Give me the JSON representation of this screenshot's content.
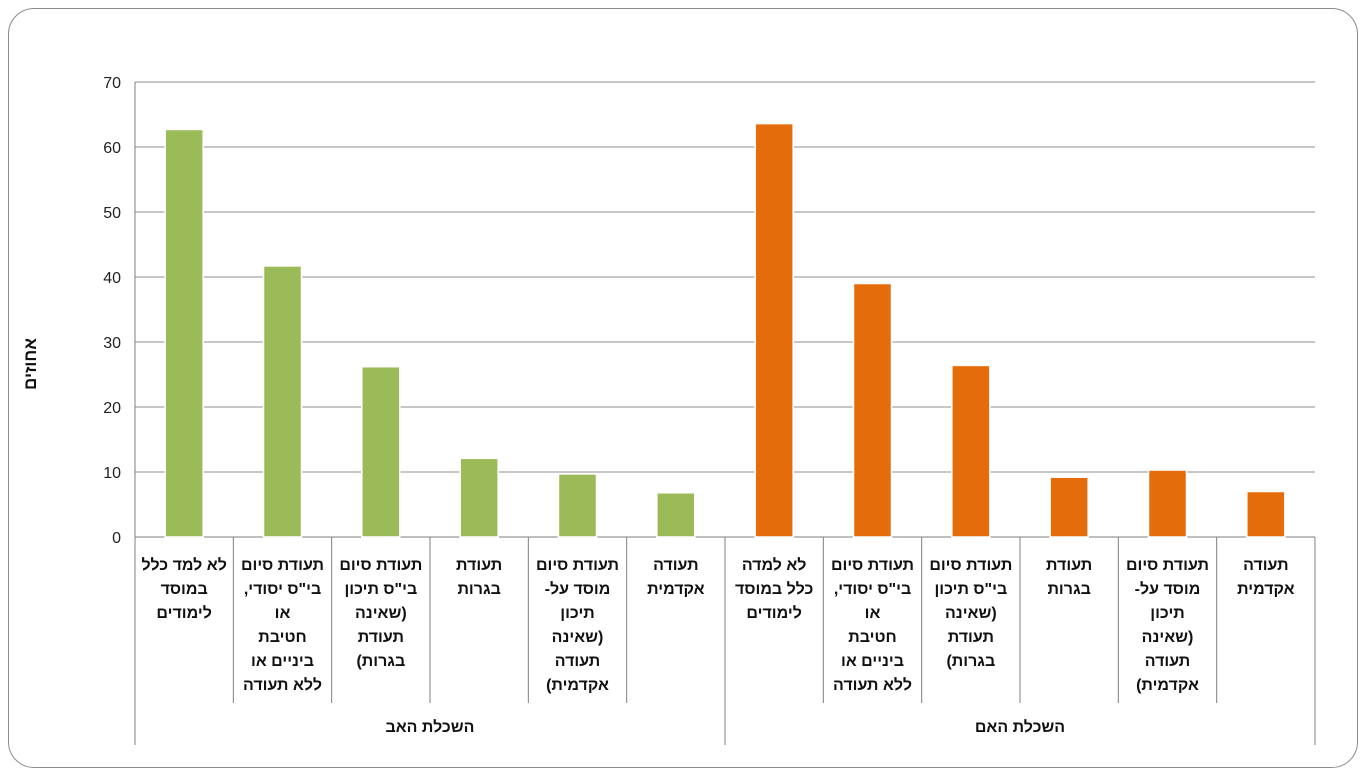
{
  "chart_data": {
    "type": "bar",
    "ylabel": "אחוזים",
    "ylim": [
      0,
      70
    ],
    "yticks": [
      "0",
      "10",
      "20",
      "30",
      "40",
      "50",
      "60",
      "70"
    ],
    "grid": true,
    "legend": "none",
    "categories": [
      "לא למד כלל במוסד לימודים",
      "תעודת סיום בי\"ס יסודי, או חטיבת ביניים או ללא תעודה",
      "תעודת סיום בי\"ס תיכון (שאינה תעודת בגרות)",
      "תעודת בגרות",
      "תעודת סיום מוסד על-תיכון (שאינה תעודה אקדמית)",
      "תעודה אקדמית",
      "לא למדה כלל במוסד לימודים",
      "תעודת סיום בי\"ס יסודי, או חטיבת ביניים או ללא תעודה",
      "תעודת סיום בי\"ס תיכון (שאינה תעודת בגרות)",
      "תעודת בגרות",
      "תעודת סיום מוסד על-תיכון (שאינה תעודה אקדמית)",
      "תעודה אקדמית"
    ],
    "category_lines": [
      [
        "לא למד כלל",
        "במוסד",
        "לימודים"
      ],
      [
        "תעודת סיום",
        "בי\"ס יסודי,",
        "או",
        "חטיבת",
        "ביניים או",
        "ללא תעודה"
      ],
      [
        "תעודת סיום",
        "בי\"ס תיכון",
        "(שאינה",
        "תעודת",
        "בגרות)"
      ],
      [
        "תעודת",
        "בגרות"
      ],
      [
        "תעודת סיום",
        "מוסד על-",
        "תיכון",
        "(שאינה",
        "תעודה",
        "אקדמית)"
      ],
      [
        "תעודה",
        "אקדמית"
      ],
      [
        "לא למדה",
        "כלל במוסד",
        "לימודים"
      ],
      [
        "תעודת סיום",
        "בי\"ס יסודי,",
        "או",
        "חטיבת",
        "ביניים או",
        "ללא תעודה"
      ],
      [
        "תעודת סיום",
        "בי\"ס תיכון",
        "(שאינה",
        "תעודת",
        "בגרות)"
      ],
      [
        "תעודת",
        "בגרות"
      ],
      [
        "תעודת סיום",
        "מוסד על-",
        "תיכון",
        "(שאינה",
        "תעודה",
        "אקדמית)"
      ],
      [
        "תעודה",
        "אקדמית"
      ]
    ],
    "groups": [
      {
        "label": "השכלת האב",
        "color": "#9bbb59",
        "values": [
          62.7,
          41.7,
          26.2,
          12.1,
          9.7,
          6.8
        ]
      },
      {
        "label": "השכלת האם",
        "color": "#e46c0a",
        "values": [
          63.6,
          39.0,
          26.4,
          9.2,
          10.3,
          7.0
        ]
      }
    ]
  }
}
